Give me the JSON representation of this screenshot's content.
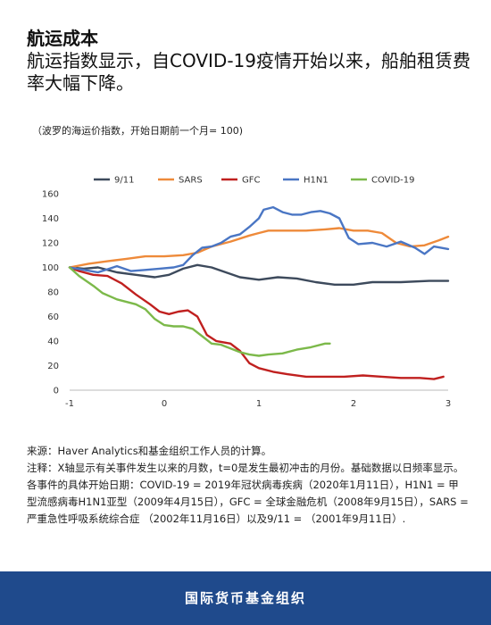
{
  "header": {
    "title": "航运成本",
    "subtitle": "航运指数显示，自COVID-19疫情开始以来，船舶租赁费率大幅下降。",
    "note": "（波罗的海运价指数，开始日期前一个月= 100)"
  },
  "footer": {
    "source": "来源：Haver Analytics和基金组织工作人员的计算。",
    "notes": "注释：X轴显示有关事件发生以来的月数，t=0是发生最初冲击的月份。基础数据以日频率显示。各事件的具体开始日期：COVID-19 = 2019年冠状病毒疾病（2020年1月11日），H1N1 = 甲型流感病毒H1N1亚型（2009年4月15日），GFC = 全球金融危机（2008年9月15日），SARS =严重急性呼吸系统综合症 （2002年11月16日）以及9/11 = （2001年9月11日）."
  },
  "banner": {
    "text": "国际货币基金组织"
  },
  "chart_data": {
    "type": "line",
    "xlim": [
      -1,
      3
    ],
    "ylim": [
      0,
      160
    ],
    "x_ticks": [
      "-1",
      "0",
      "1",
      "2",
      "3"
    ],
    "y_ticks": [
      "0",
      "20",
      "40",
      "60",
      "80",
      "100",
      "120",
      "140",
      "160"
    ],
    "legend_position": "top",
    "series": [
      {
        "name": "9/11",
        "color": "#3d4a5c",
        "points": [
          [
            -1,
            100
          ],
          [
            -0.85,
            99
          ],
          [
            -0.7,
            100
          ],
          [
            -0.5,
            96
          ],
          [
            -0.3,
            94
          ],
          [
            -0.1,
            92
          ],
          [
            0.05,
            94
          ],
          [
            0.2,
            99
          ],
          [
            0.35,
            102
          ],
          [
            0.5,
            100
          ],
          [
            0.65,
            96
          ],
          [
            0.8,
            92
          ],
          [
            1.0,
            90
          ],
          [
            1.2,
            92
          ],
          [
            1.4,
            91
          ],
          [
            1.6,
            88
          ],
          [
            1.8,
            86
          ],
          [
            2.0,
            86
          ],
          [
            2.2,
            88
          ],
          [
            2.5,
            88
          ],
          [
            2.8,
            89
          ],
          [
            3.0,
            89
          ]
        ]
      },
      {
        "name": "SARS",
        "color": "#ee8a3a",
        "points": [
          [
            -1,
            100
          ],
          [
            -0.8,
            103
          ],
          [
            -0.6,
            105
          ],
          [
            -0.4,
            107
          ],
          [
            -0.2,
            109
          ],
          [
            0,
            109
          ],
          [
            0.2,
            110
          ],
          [
            0.35,
            112
          ],
          [
            0.5,
            117
          ],
          [
            0.7,
            121
          ],
          [
            0.9,
            126
          ],
          [
            1.0,
            128
          ],
          [
            1.1,
            130
          ],
          [
            1.3,
            130
          ],
          [
            1.5,
            130
          ],
          [
            1.7,
            131
          ],
          [
            1.85,
            132
          ],
          [
            2.0,
            130
          ],
          [
            2.15,
            130
          ],
          [
            2.3,
            128
          ],
          [
            2.45,
            120
          ],
          [
            2.6,
            117
          ],
          [
            2.75,
            118
          ],
          [
            2.9,
            122
          ],
          [
            3.0,
            125
          ]
        ]
      },
      {
        "name": "GFC",
        "color": "#c0201f",
        "points": [
          [
            -1,
            100
          ],
          [
            -0.9,
            97
          ],
          [
            -0.75,
            94
          ],
          [
            -0.6,
            93
          ],
          [
            -0.45,
            87
          ],
          [
            -0.3,
            78
          ],
          [
            -0.15,
            70
          ],
          [
            -0.05,
            64
          ],
          [
            0.05,
            62
          ],
          [
            0.15,
            64
          ],
          [
            0.25,
            65
          ],
          [
            0.35,
            60
          ],
          [
            0.45,
            45
          ],
          [
            0.55,
            40
          ],
          [
            0.7,
            38
          ],
          [
            0.8,
            32
          ],
          [
            0.9,
            22
          ],
          [
            1.0,
            18
          ],
          [
            1.15,
            15
          ],
          [
            1.3,
            13
          ],
          [
            1.5,
            11
          ],
          [
            1.7,
            11
          ],
          [
            1.9,
            11
          ],
          [
            2.1,
            12
          ],
          [
            2.3,
            11
          ],
          [
            2.5,
            10
          ],
          [
            2.7,
            10
          ],
          [
            2.85,
            9
          ],
          [
            2.95,
            11
          ]
        ]
      },
      {
        "name": "H1N1",
        "color": "#4a76c4",
        "points": [
          [
            -1,
            100
          ],
          [
            -0.85,
            98
          ],
          [
            -0.7,
            96
          ],
          [
            -0.5,
            101
          ],
          [
            -0.35,
            97
          ],
          [
            -0.2,
            98
          ],
          [
            -0.05,
            99
          ],
          [
            0.1,
            100
          ],
          [
            0.2,
            102
          ],
          [
            0.3,
            110
          ],
          [
            0.4,
            116
          ],
          [
            0.5,
            117
          ],
          [
            0.6,
            120
          ],
          [
            0.7,
            125
          ],
          [
            0.8,
            127
          ],
          [
            0.9,
            133
          ],
          [
            1.0,
            140
          ],
          [
            1.05,
            147
          ],
          [
            1.15,
            149
          ],
          [
            1.25,
            145
          ],
          [
            1.35,
            143
          ],
          [
            1.45,
            143
          ],
          [
            1.55,
            145
          ],
          [
            1.65,
            146
          ],
          [
            1.75,
            144
          ],
          [
            1.85,
            140
          ],
          [
            1.95,
            124
          ],
          [
            2.05,
            119
          ],
          [
            2.2,
            120
          ],
          [
            2.35,
            117
          ],
          [
            2.5,
            121
          ],
          [
            2.65,
            116
          ],
          [
            2.75,
            111
          ],
          [
            2.85,
            117
          ],
          [
            3.0,
            115
          ]
        ]
      },
      {
        "name": "COVID-19",
        "color": "#7cb94a",
        "points": [
          [
            -1,
            100
          ],
          [
            -0.9,
            93
          ],
          [
            -0.75,
            85
          ],
          [
            -0.65,
            79
          ],
          [
            -0.5,
            74
          ],
          [
            -0.3,
            70
          ],
          [
            -0.2,
            66
          ],
          [
            -0.1,
            58
          ],
          [
            0,
            53
          ],
          [
            0.1,
            52
          ],
          [
            0.2,
            52
          ],
          [
            0.3,
            50
          ],
          [
            0.4,
            44
          ],
          [
            0.5,
            38
          ],
          [
            0.6,
            37
          ],
          [
            0.7,
            34
          ],
          [
            0.8,
            31
          ],
          [
            0.9,
            29
          ],
          [
            1.0,
            28
          ],
          [
            1.1,
            29
          ],
          [
            1.25,
            30
          ],
          [
            1.4,
            33
          ],
          [
            1.55,
            35
          ],
          [
            1.7,
            38
          ],
          [
            1.75,
            38
          ]
        ]
      }
    ]
  }
}
